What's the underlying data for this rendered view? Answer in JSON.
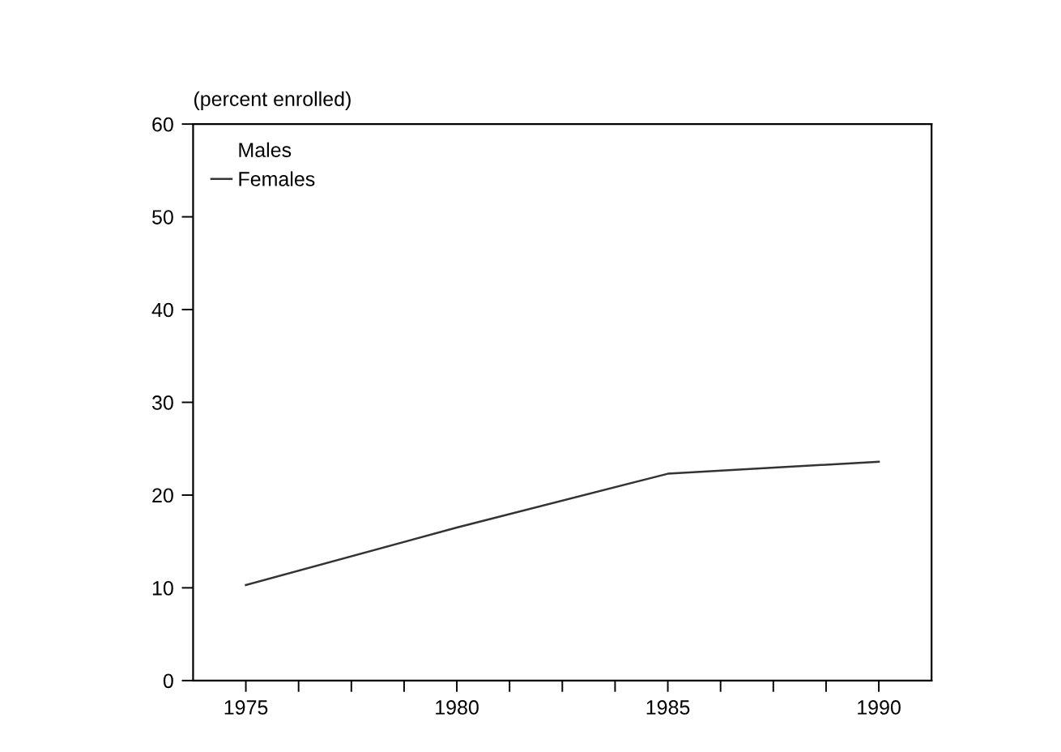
{
  "chart_data": {
    "type": "line",
    "ylabel": "(percent enrolled)",
    "x": [
      1975,
      1980,
      1985,
      1990
    ],
    "series": [
      {
        "name": "Males",
        "values": [
          null,
          null,
          null,
          null
        ]
      },
      {
        "name": "Females",
        "color": "#333333",
        "values": [
          10.3,
          16.5,
          22.3,
          23.6
        ]
      }
    ],
    "xlim": [
      1973.75,
      1991.25
    ],
    "xticks": [
      1975,
      {
        "value": 1976.25,
        "label": null
      },
      {
        "value": 1977.5,
        "label": null
      },
      {
        "value": 1978.75,
        "label": null
      },
      1980,
      {
        "value": 1981.25,
        "label": null
      },
      {
        "value": 1982.5,
        "label": null
      },
      {
        "value": 1983.75,
        "label": null
      },
      1985,
      {
        "value": 1986.25,
        "label": null
      },
      {
        "value": 1987.5,
        "label": null
      },
      {
        "value": 1988.75,
        "label": null
      },
      1990
    ],
    "ylim": [
      0,
      60
    ],
    "yticks": [
      0,
      10,
      20,
      30,
      40,
      50,
      60
    ],
    "grid": false,
    "legend": "top left",
    "marker": "none",
    "line_style": "solid"
  }
}
